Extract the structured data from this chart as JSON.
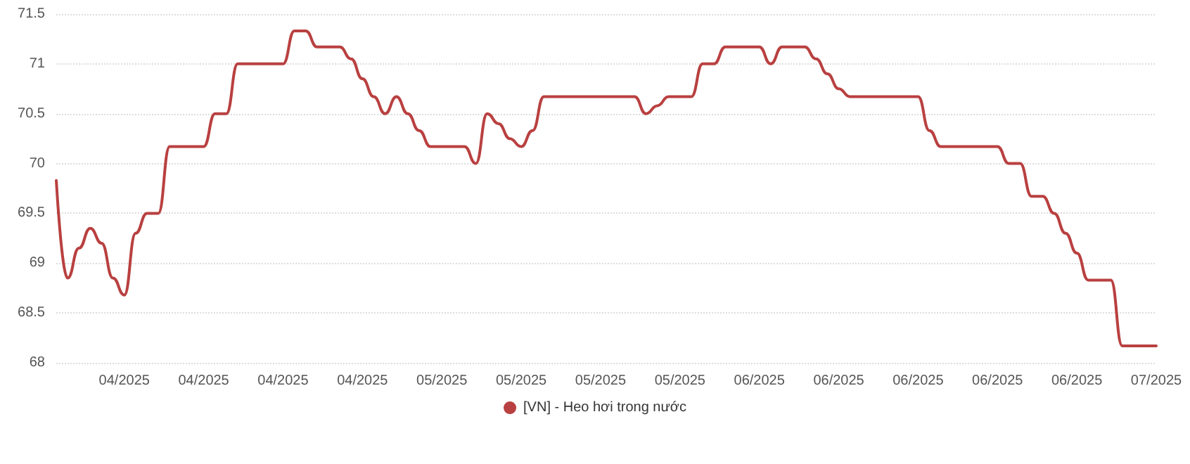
{
  "chart_data": {
    "type": "line",
    "categories": [
      null,
      null,
      null,
      null,
      null,
      null,
      "04/2025",
      null,
      null,
      null,
      null,
      null,
      null,
      "04/2025",
      null,
      null,
      null,
      null,
      null,
      null,
      "04/2025",
      null,
      null,
      null,
      null,
      null,
      null,
      "04/2025",
      null,
      null,
      null,
      null,
      null,
      null,
      "05/2025",
      null,
      null,
      null,
      null,
      null,
      null,
      "05/2025",
      null,
      null,
      null,
      null,
      null,
      null,
      "05/2025",
      null,
      null,
      null,
      null,
      null,
      null,
      "05/2025",
      null,
      null,
      null,
      null,
      null,
      null,
      "06/2025",
      null,
      null,
      null,
      null,
      null,
      null,
      "06/2025",
      null,
      null,
      null,
      null,
      null,
      null,
      "06/2025",
      null,
      null,
      null,
      null,
      null,
      null,
      "06/2025",
      null,
      null,
      null,
      null,
      null,
      null,
      "06/2025",
      null,
      null,
      null,
      null,
      null,
      null,
      "07/2025"
    ],
    "series": [
      {
        "name": "[VN] - Heo hơi trong nước",
        "color": "#b94040",
        "values": [
          69.83,
          68.85,
          69.15,
          69.35,
          69.2,
          68.85,
          68.68,
          69.3,
          69.5,
          69.5,
          70.17,
          70.17,
          70.17,
          70.17,
          70.5,
          70.5,
          71,
          71,
          71,
          71,
          71,
          71.33,
          71.33,
          71.17,
          71.17,
          71.17,
          71.05,
          70.85,
          70.67,
          70.5,
          70.67,
          70.5,
          70.33,
          70.17,
          70.17,
          70.17,
          70.17,
          70,
          70.5,
          70.4,
          70.25,
          70.17,
          70.33,
          70.67,
          70.67,
          70.67,
          70.67,
          70.67,
          70.67,
          70.67,
          70.67,
          70.67,
          70.5,
          70.58,
          70.67,
          70.67,
          70.67,
          71,
          71,
          71.17,
          71.17,
          71.17,
          71.17,
          71,
          71.17,
          71.17,
          71.17,
          71.05,
          70.9,
          70.75,
          70.67,
          70.67,
          70.67,
          70.67,
          70.67,
          70.67,
          70.67,
          70.33,
          70.17,
          70.17,
          70.17,
          70.17,
          70.17,
          70.17,
          70,
          70,
          69.67,
          69.67,
          69.5,
          69.3,
          69.1,
          68.83,
          68.83,
          68.83,
          68.17,
          68.17,
          68.17,
          68.17
        ]
      }
    ],
    "ylim": [
      68,
      71.5
    ],
    "yticks": [
      68,
      68.5,
      69,
      69.5,
      70,
      70.5,
      71,
      71.5
    ],
    "grid": "y",
    "legend": "bottom",
    "marker": "none",
    "line_style": "solid"
  }
}
